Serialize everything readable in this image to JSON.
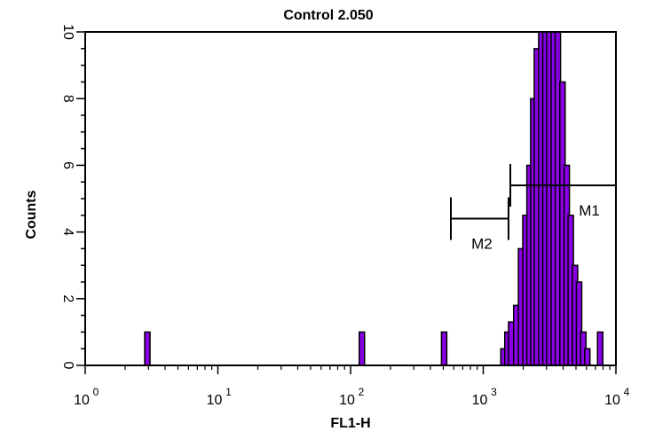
{
  "chart_data": {
    "type": "histogram",
    "title": "Control 2.050",
    "xlabel": "FL1-H",
    "ylabel": "Counts",
    "x_scale": "log",
    "xlim": [
      1,
      10000
    ],
    "ylim": [
      0,
      10
    ],
    "x_ticks": [
      {
        "base": "10",
        "exp": "0",
        "value": 1
      },
      {
        "base": "10",
        "exp": "1",
        "value": 10
      },
      {
        "base": "10",
        "exp": "2",
        "value": 100
      },
      {
        "base": "10",
        "exp": "3",
        "value": 1000
      },
      {
        "base": "10",
        "exp": "4",
        "value": 10000
      }
    ],
    "y_ticks": [
      0,
      2,
      4,
      6,
      8,
      10
    ],
    "fill_color": "#8A00E6",
    "stroke_color": "#000000",
    "bins": [
      {
        "x": 2.9,
        "count": 1
      },
      {
        "x": 120,
        "count": 1
      },
      {
        "x": 500,
        "count": 1
      },
      {
        "x": 1400,
        "count": 0.5
      },
      {
        "x": 1500,
        "count": 1
      },
      {
        "x": 1600,
        "count": 1.3
      },
      {
        "x": 1750,
        "count": 1.8
      },
      {
        "x": 1900,
        "count": 3.5
      },
      {
        "x": 2050,
        "count": 4.5
      },
      {
        "x": 2200,
        "count": 6
      },
      {
        "x": 2350,
        "count": 8
      },
      {
        "x": 2500,
        "count": 9.5
      },
      {
        "x": 2700,
        "count": 10
      },
      {
        "x": 2900,
        "count": 10
      },
      {
        "x": 3100,
        "count": 10
      },
      {
        "x": 3350,
        "count": 10
      },
      {
        "x": 3600,
        "count": 10
      },
      {
        "x": 3900,
        "count": 8.5
      },
      {
        "x": 4200,
        "count": 6
      },
      {
        "x": 4500,
        "count": 4.5
      },
      {
        "x": 4850,
        "count": 3
      },
      {
        "x": 5200,
        "count": 2.5
      },
      {
        "x": 5600,
        "count": 1
      },
      {
        "x": 6000,
        "count": 0.5
      },
      {
        "x": 7500,
        "count": 1
      }
    ],
    "markers": [
      {
        "name": "M1",
        "x_start": 1600,
        "x_end": 10000,
        "y": 5.4
      },
      {
        "name": "M2",
        "x_start": 570,
        "x_end": 1550,
        "y": 4.4
      }
    ]
  }
}
